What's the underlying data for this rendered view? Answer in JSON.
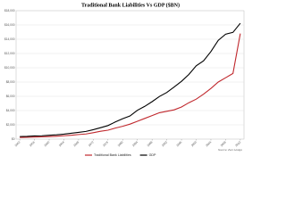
{
  "chart_data": {
    "type": "line",
    "title": "Traditional Bank Liabilities Vs GDP ($BN)",
    "x": [
      1952,
      1954,
      1956,
      1958,
      1960,
      1962,
      1964,
      1966,
      1968,
      1970,
      1972,
      1974,
      1976,
      1978,
      1980,
      1982,
      1984,
      1986,
      1988,
      1990,
      1992,
      1994,
      1996,
      1998,
      2000,
      2002,
      2004,
      2006,
      2008,
      2010,
      2012
    ],
    "series": [
      {
        "name": "Traditional Bank Liabilities",
        "color": "#c0282d",
        "values": [
          230,
          260,
          290,
          320,
          350,
          400,
          470,
          540,
          640,
          720,
          900,
          1100,
          1250,
          1550,
          1800,
          2100,
          2500,
          2900,
          3300,
          3700,
          3900,
          4100,
          4500,
          5100,
          5600,
          6300,
          7100,
          8000,
          8600,
          9200,
          14800
        ]
      },
      {
        "name": "GDP",
        "color": "#000000",
        "values": [
          360,
          380,
          440,
          470,
          540,
          600,
          690,
          820,
          940,
          1080,
          1320,
          1600,
          1900,
          2400,
          2860,
          3250,
          4040,
          4590,
          5250,
          5980,
          6540,
          7310,
          8100,
          9060,
          10280,
          10980,
          12270,
          13850,
          14710,
          14960,
          16240
        ]
      }
    ],
    "xlim": [
      1951,
      2013
    ],
    "xticks": [
      1952,
      1956,
      1960,
      1964,
      1968,
      1972,
      1976,
      1980,
      1984,
      1988,
      1992,
      1996,
      2000,
      2004,
      2008,
      2012
    ],
    "ylim": [
      0,
      18000
    ],
    "yticks": [
      {
        "value": 0,
        "label": "$0"
      },
      {
        "value": 2000,
        "label": "$2,000"
      },
      {
        "value": 4000,
        "label": "$4,000"
      },
      {
        "value": 6000,
        "label": "$6,000"
      },
      {
        "value": 8000,
        "label": "$8,000"
      },
      {
        "value": 10000,
        "label": "$10,000"
      },
      {
        "value": 12000,
        "label": "$12,000"
      },
      {
        "value": 14000,
        "label": "$14,000"
      },
      {
        "value": 16000,
        "label": "$16,000"
      },
      {
        "value": 18000,
        "label": "$18,000"
      }
    ],
    "grid": true,
    "legend": "bottom",
    "annotation": "Source: Zero Hedge"
  }
}
